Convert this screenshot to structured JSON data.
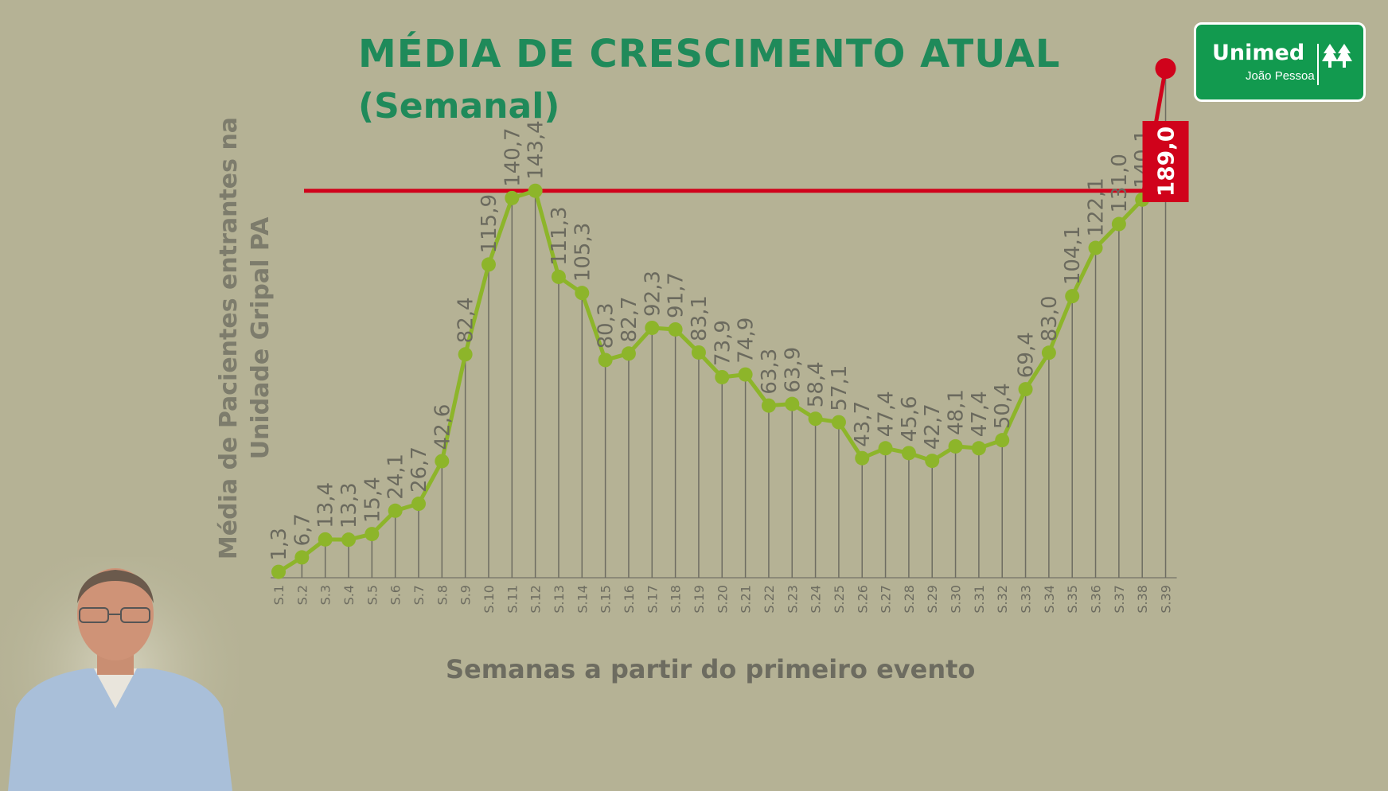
{
  "title": "MÉDIA DE CRESCIMENTO ATUAL",
  "subtitle": "(Semanal)",
  "logo": {
    "brand": "Unimed",
    "city": "João Pessoa"
  },
  "colors": {
    "background": "#b5b295",
    "title": "#1f8a5a",
    "series": "#8db52a",
    "highlight": "#d0021b",
    "axis_text": "#6d6c60",
    "logo_bg": "#129a4f"
  },
  "chart_data": {
    "type": "line",
    "xlabel": "Semanas a partir do primeiro evento",
    "ylabel": "Média de Pacientes entrantes na Unidade Gripal PA",
    "categories": [
      "S.1",
      "S.2",
      "S.3",
      "S.4",
      "S.5",
      "S.6",
      "S.7",
      "S.8",
      "S.9",
      "S.10",
      "S.11",
      "S.12",
      "S.13",
      "S.14",
      "S.15",
      "S.16",
      "S.17",
      "S.18",
      "S.19",
      "S.20",
      "S.21",
      "S.22",
      "S.23",
      "S.24",
      "S.25",
      "S.26",
      "S.27",
      "S.28",
      "S.29",
      "S.30",
      "S.31",
      "S.32",
      "S.33",
      "S.34",
      "S.35",
      "S.36",
      "S.37",
      "S.38",
      "S.39"
    ],
    "values": [
      1.3,
      6.7,
      13.4,
      13.3,
      15.4,
      24.1,
      26.7,
      42.6,
      82.4,
      115.9,
      140.7,
      143.4,
      111.3,
      105.3,
      80.3,
      82.7,
      92.3,
      91.7,
      83.1,
      73.9,
      74.9,
      63.3,
      63.9,
      58.4,
      57.1,
      43.7,
      47.4,
      45.6,
      42.7,
      48.1,
      47.4,
      50.4,
      69.4,
      83.0,
      104.1,
      122.1,
      131.0,
      140.1,
      189.0
    ],
    "labels": [
      "1,3",
      "6,7",
      "13,4",
      "13,3",
      "15,4",
      "24,1",
      "26,7",
      "42,6",
      "82,4",
      "115,9",
      "140,7",
      "143,4",
      "111,3",
      "105,3",
      "80,3",
      "82,7",
      "92,3",
      "91,7",
      "83,1",
      "73,9",
      "74,9",
      "63,3",
      "63,9",
      "58,4",
      "57,1",
      "43,7",
      "47,4",
      "45,6",
      "42,7",
      "48,1",
      "47,4",
      "50,4",
      "69,4",
      "83,0",
      "104,1",
      "122,1",
      "131,0",
      "140,1",
      "189,0"
    ],
    "reference_line": 143.4,
    "highlight_index": 38,
    "ylim": [
      0,
      200
    ],
    "grid": false
  }
}
